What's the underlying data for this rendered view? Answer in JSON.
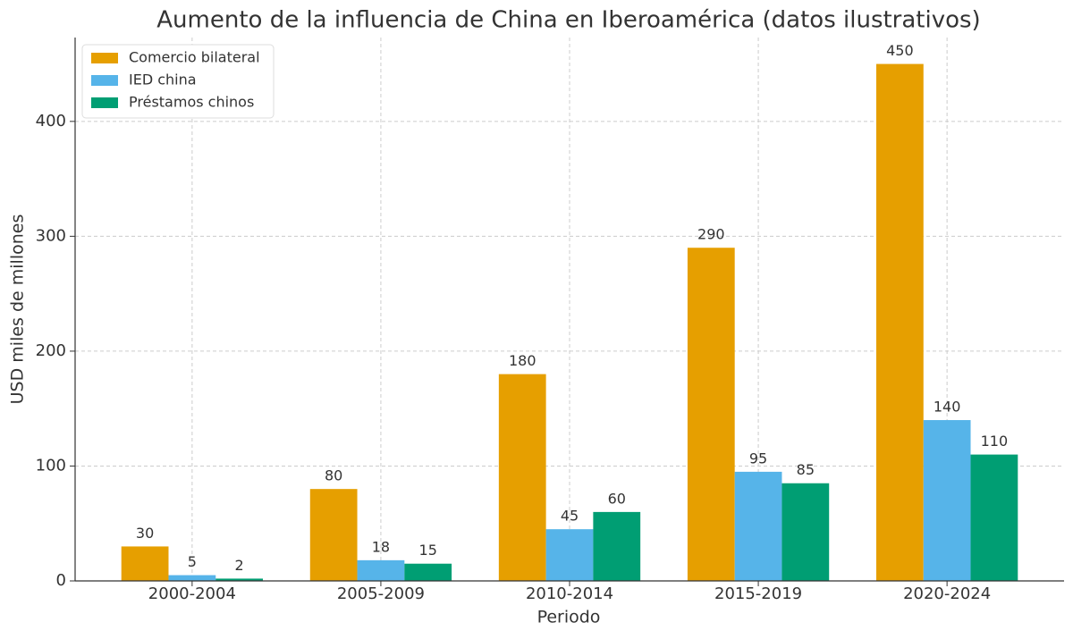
{
  "chart_data": {
    "type": "bar",
    "title": "Aumento de la influencia de China en Iberoamérica (datos ilustrativos)",
    "x_label": "Periodo",
    "y_label": "USD miles de millones",
    "categories": [
      "2000-2004",
      "2005-2009",
      "2010-2014",
      "2015-2019",
      "2020-2024"
    ],
    "series": [
      {
        "name": "Comercio bilateral",
        "color": "#e69f00",
        "values": [
          30,
          80,
          180,
          290,
          450
        ]
      },
      {
        "name": "IED china",
        "color": "#56b4e9",
        "values": [
          5,
          18,
          45,
          95,
          140
        ]
      },
      {
        "name": "Préstamos chinos",
        "color": "#009e73",
        "values": [
          2,
          15,
          60,
          85,
          110
        ]
      }
    ],
    "ylim": [
      0,
      473
    ],
    "yticks": [
      0,
      100,
      200,
      300,
      400
    ],
    "grid": true,
    "legend": "upper left"
  }
}
